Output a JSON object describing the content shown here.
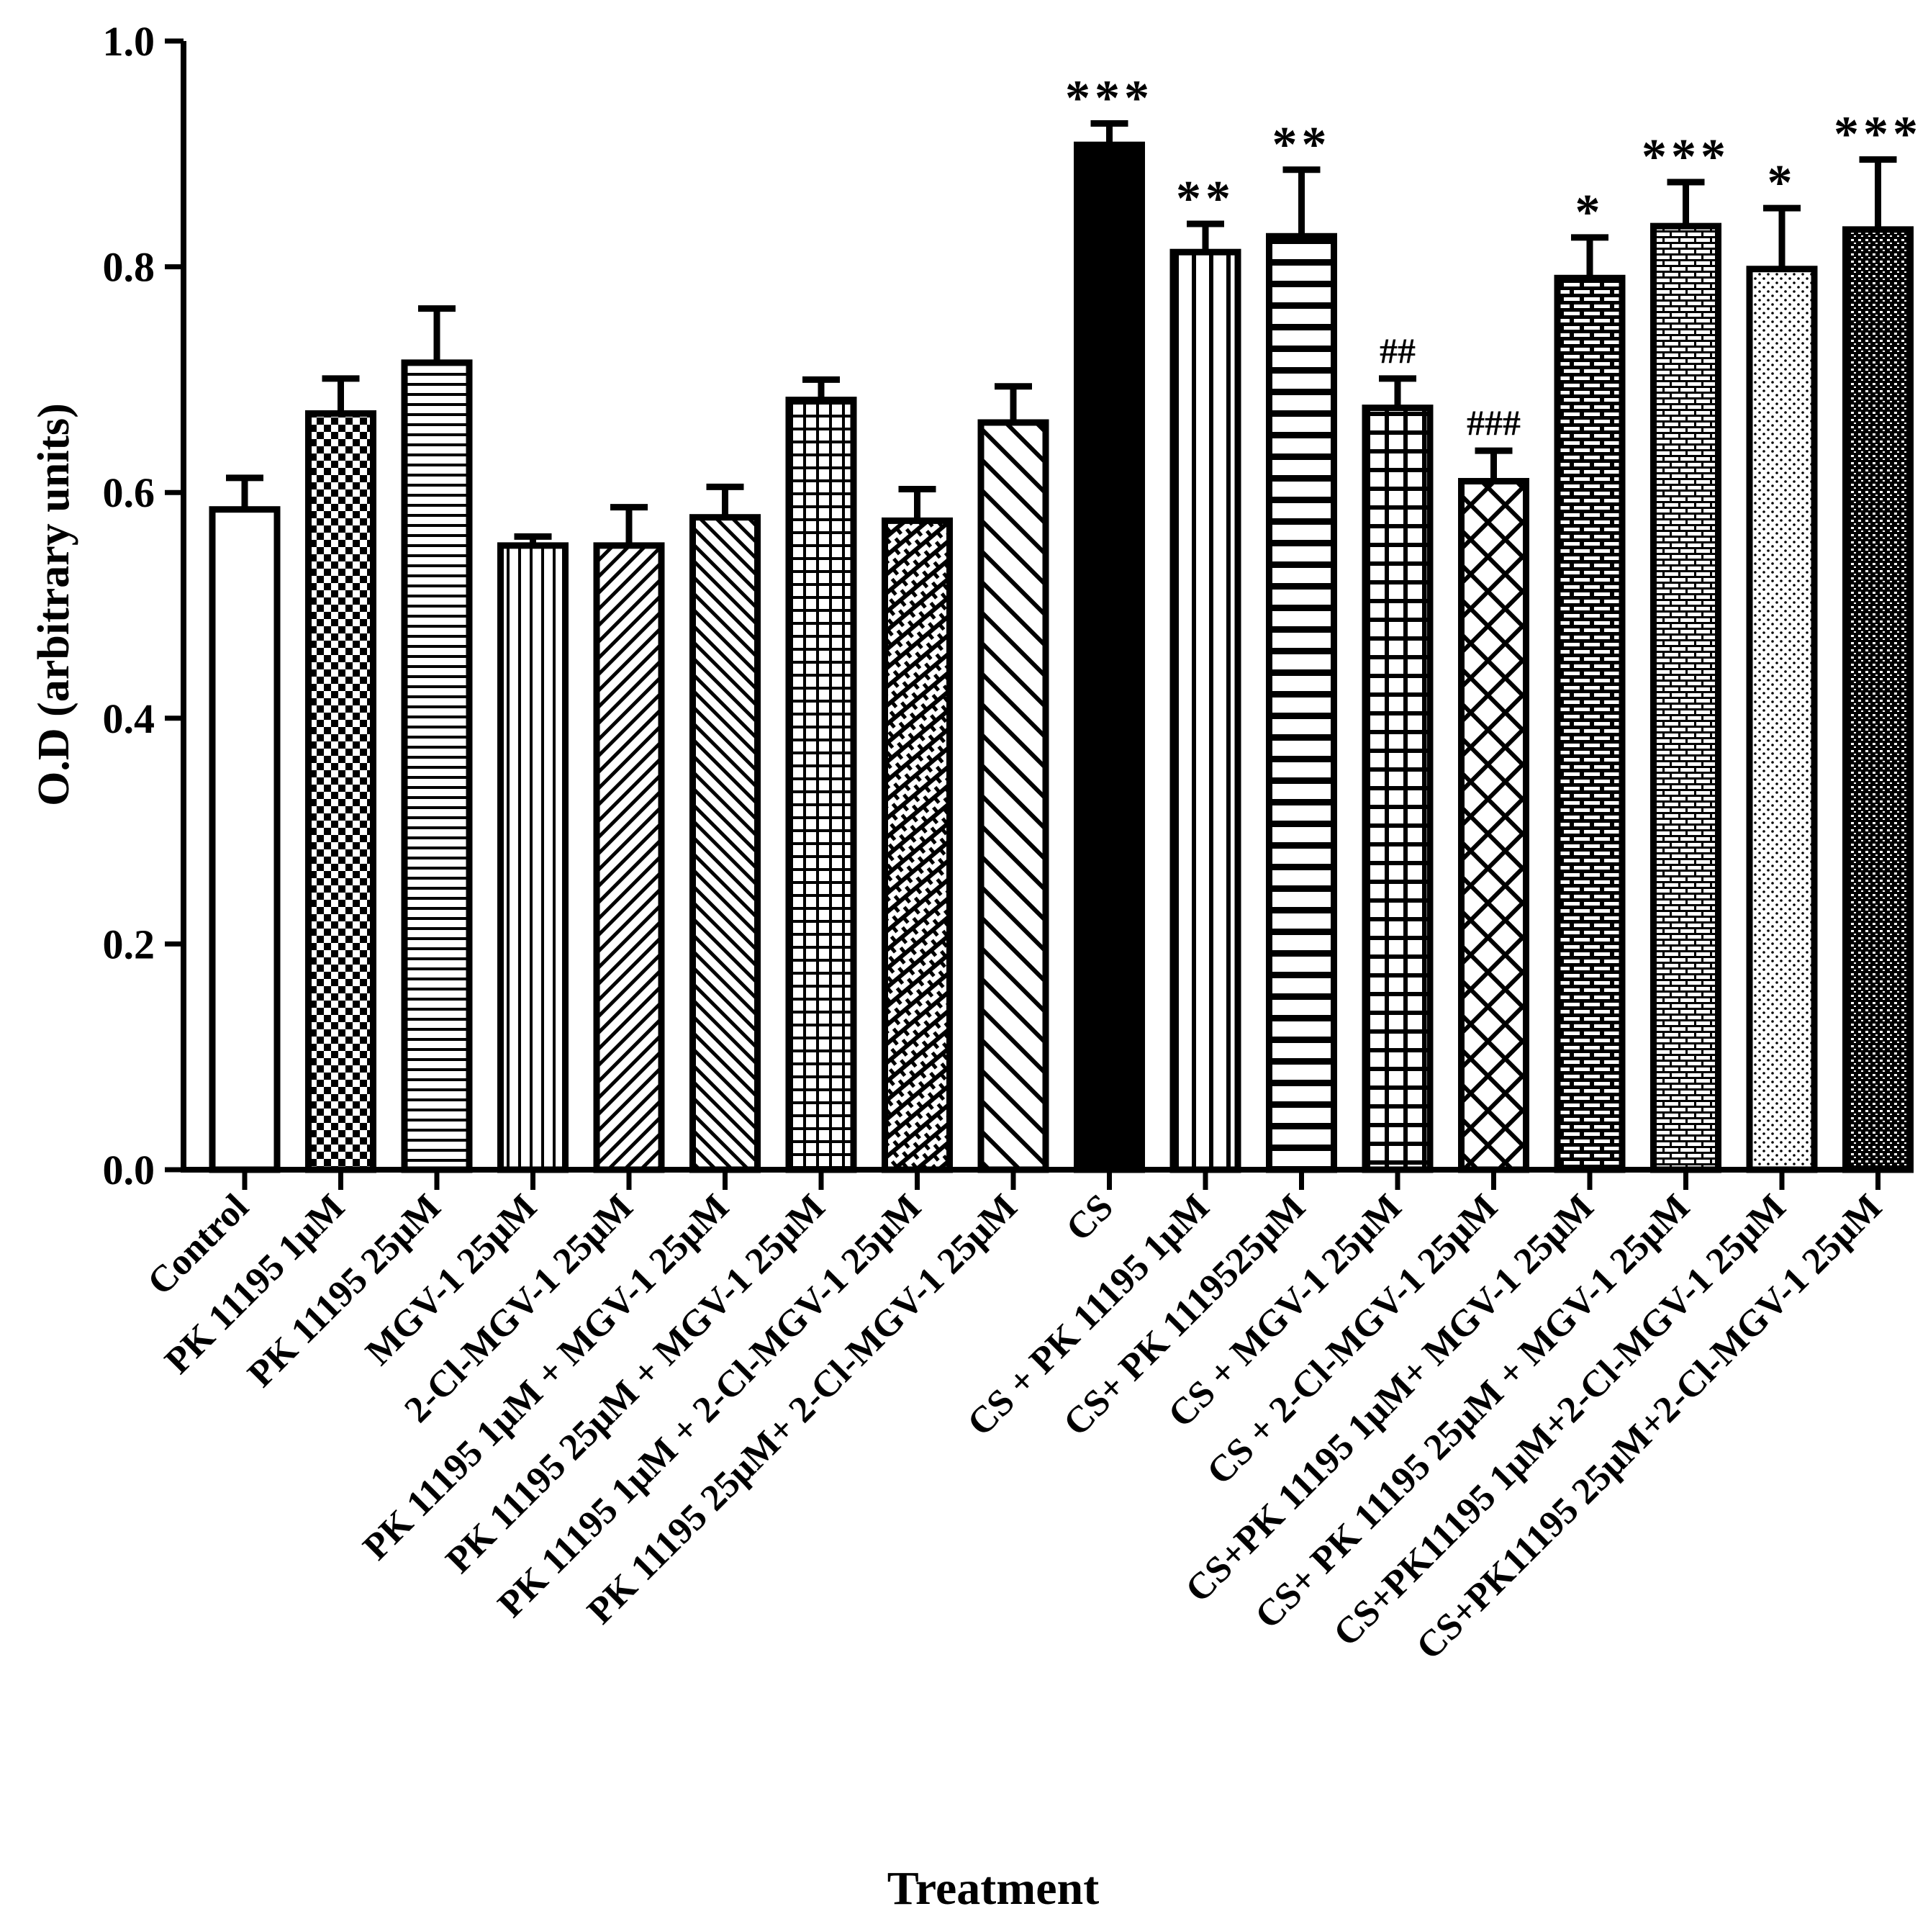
{
  "chart_data": {
    "type": "bar",
    "title": "",
    "xlabel": "Treatment",
    "ylabel": "O.D (arbitrary units)",
    "ylim": [
      0,
      1.0
    ],
    "yticks": [
      0.0,
      0.2,
      0.4,
      0.6,
      0.8,
      1.0
    ],
    "ytick_labels": [
      "0.0",
      "0.2",
      "0.4",
      "0.6",
      "0.8",
      "1.0"
    ],
    "grid": false,
    "categories": [
      "Control",
      "PK 11195 1μM",
      "PK 11195 25μM",
      "MGV-1 25μM",
      "2-Cl-MGV-1 25μM",
      "PK 11195 1μM + MGV-1 25μM",
      "PK 11195 25μM + MGV-1 25μM",
      "PK 11195 1μM + 2-Cl-MGV-1 25μM",
      "PK 11195 25μM+ 2-Cl-MGV-1 25μM",
      "CS",
      "CS + PK 11195 1μM",
      "CS+ PK 1119525μM",
      "CS + MGV-1 25μM",
      "CS + 2-Cl-MGV-1 25μM",
      "CS+PK 11195 1μM+ MGV-1 25μM",
      "CS+ PK 11195 25μM + MGV-1 25μM",
      "CS+PK11195 1μM+2-Cl-MGV-1 25μM",
      "CS+PK11195 25μM+2-Cl-MGV-1 25μM"
    ],
    "values": [
      0.585,
      0.67,
      0.715,
      0.553,
      0.553,
      0.578,
      0.682,
      0.575,
      0.662,
      0.908,
      0.813,
      0.827,
      0.675,
      0.61,
      0.79,
      0.836,
      0.798,
      0.833
    ],
    "errors": [
      0.028,
      0.031,
      0.048,
      0.008,
      0.034,
      0.027,
      0.018,
      0.028,
      0.032,
      0.019,
      0.025,
      0.059,
      0.026,
      0.027,
      0.036,
      0.039,
      0.054,
      0.062
    ],
    "patterns": [
      "empty",
      "checker",
      "hlines",
      "vlines",
      "diag-up",
      "diag-down",
      "grid",
      "brick-diag",
      "diag-down-wide",
      "solid",
      "vlines-wide",
      "hlines-wide",
      "grid-wide",
      "crosshatch",
      "brick",
      "brick-small",
      "dots",
      "fine-dots"
    ],
    "annotations": [
      "",
      "",
      "",
      "",
      "",
      "",
      "",
      "",
      "",
      "***",
      "**",
      "**",
      "##",
      "###",
      "*",
      "***",
      "*",
      "***"
    ]
  }
}
